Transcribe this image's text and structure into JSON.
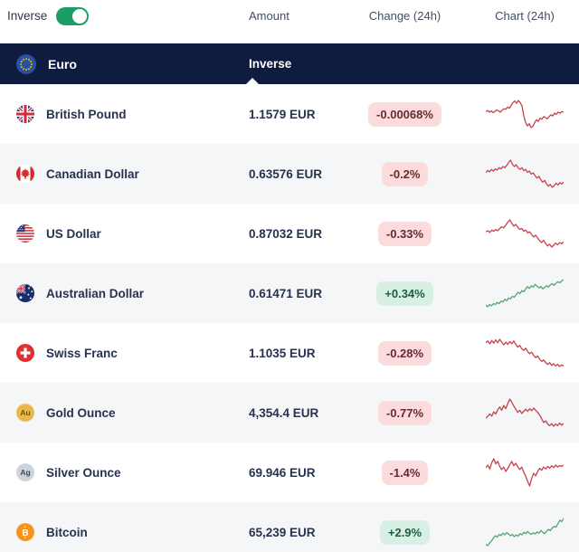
{
  "colors": {
    "navy": "#101c3f",
    "row_alt": "#f5f6f8",
    "toggle_on": "#1b9d65",
    "badge_down_bg": "#fbdbdb",
    "badge_down_text": "#662a32",
    "badge_up_bg": "#d8f0e3",
    "badge_up_text": "#1c5e45",
    "spark_down": "#c8414e",
    "spark_up": "#58a46e"
  },
  "toolbar": {
    "inverse_label": "Inverse",
    "inverse_toggle_state": "on"
  },
  "columns": {
    "amount": "Amount",
    "change": "Change (24h)",
    "chart": "Chart (24h)"
  },
  "base": {
    "name": "Euro",
    "mode_label": "Inverse",
    "flag": "eu-flag-icon"
  },
  "rows": [
    {
      "name": "British Pound",
      "flag": "uk",
      "amount": "1.1579 EUR",
      "change": "-0.00068%",
      "direction": "down",
      "spark": [
        56,
        58,
        55,
        57,
        54,
        56,
        59,
        57,
        55,
        58,
        61,
        60,
        64,
        62,
        67,
        72,
        75,
        71,
        76,
        72,
        66,
        48,
        36,
        30,
        34,
        27,
        29,
        36,
        41,
        38,
        44,
        42,
        47,
        45,
        43,
        47,
        50,
        48,
        53,
        51,
        55,
        53,
        56,
        55
      ]
    },
    {
      "name": "Canadian Dollar",
      "flag": "ca",
      "amount": "0.63576 EUR",
      "change": "-0.2%",
      "direction": "down",
      "spark": [
        55,
        58,
        56,
        60,
        57,
        61,
        59,
        63,
        61,
        65,
        63,
        67,
        72,
        76,
        69,
        65,
        68,
        63,
        60,
        63,
        58,
        60,
        55,
        57,
        52,
        54,
        49,
        45,
        48,
        42,
        38,
        41,
        35,
        31,
        34,
        29,
        32,
        36,
        33,
        37,
        35,
        38
      ]
    },
    {
      "name": "US Dollar",
      "flag": "us",
      "amount": "0.87032 EUR",
      "change": "-0.33%",
      "direction": "down",
      "spark": [
        56,
        58,
        55,
        59,
        57,
        60,
        58,
        62,
        65,
        63,
        68,
        73,
        77,
        71,
        66,
        69,
        64,
        60,
        62,
        57,
        59,
        54,
        56,
        51,
        47,
        50,
        45,
        40,
        37,
        41,
        35,
        31,
        34,
        29,
        32,
        36,
        33,
        37,
        35,
        38
      ]
    },
    {
      "name": "Australian Dollar",
      "flag": "au",
      "amount": "0.61471 EUR",
      "change": "+0.34%",
      "direction": "up",
      "spark": [
        28,
        24,
        29,
        26,
        31,
        29,
        34,
        31,
        37,
        35,
        41,
        38,
        44,
        42,
        48,
        46,
        52,
        57,
        54,
        61,
        58,
        65,
        70,
        66,
        72,
        69,
        75,
        71,
        67,
        70,
        65,
        68,
        72,
        69,
        74,
        77,
        73,
        78,
        81,
        79,
        83,
        86
      ]
    },
    {
      "name": "Swiss Franc",
      "flag": "ch",
      "amount": "1.1035 EUR",
      "change": "-0.28%",
      "direction": "down",
      "spark": [
        72,
        75,
        70,
        76,
        71,
        77,
        72,
        78,
        73,
        68,
        73,
        69,
        74,
        70,
        75,
        69,
        64,
        67,
        61,
        58,
        62,
        56,
        52,
        55,
        49,
        45,
        48,
        42,
        38,
        41,
        36,
        33,
        36,
        31,
        34,
        30,
        33,
        29,
        32,
        30
      ]
    },
    {
      "name": "Gold Ounce",
      "flag": "gold",
      "amount": "4,354.4 EUR",
      "change": "-0.77%",
      "direction": "down",
      "spark": [
        42,
        46,
        50,
        46,
        54,
        50,
        58,
        63,
        57,
        66,
        60,
        70,
        78,
        72,
        65,
        59,
        53,
        57,
        51,
        55,
        59,
        55,
        60,
        56,
        61,
        57,
        53,
        48,
        41,
        34,
        37,
        31,
        28,
        32,
        27,
        31,
        28,
        33,
        29,
        32
      ]
    },
    {
      "name": "Silver Ounce",
      "flag": "silver",
      "amount": "69.946 EUR",
      "change": "-1.4%",
      "direction": "down",
      "spark": [
        60,
        64,
        58,
        68,
        74,
        66,
        70,
        62,
        57,
        61,
        54,
        59,
        65,
        70,
        63,
        67,
        61,
        57,
        61,
        53,
        46,
        38,
        31,
        43,
        51,
        47,
        54,
        59,
        56,
        61,
        58,
        62,
        59,
        63,
        60,
        64,
        61,
        63,
        62,
        64
      ]
    },
    {
      "name": "Bitcoin",
      "flag": "btc",
      "amount": "65,239 EUR",
      "change": "+2.9%",
      "direction": "up",
      "spark": [
        18,
        15,
        21,
        26,
        33,
        38,
        35,
        41,
        38,
        44,
        40,
        45,
        42,
        38,
        41,
        36,
        40,
        37,
        43,
        40,
        46,
        43,
        48,
        44,
        41,
        45,
        42,
        47,
        44,
        50,
        46,
        43,
        48,
        53,
        50,
        56,
        60,
        58,
        66,
        74,
        71,
        78
      ]
    }
  ]
}
